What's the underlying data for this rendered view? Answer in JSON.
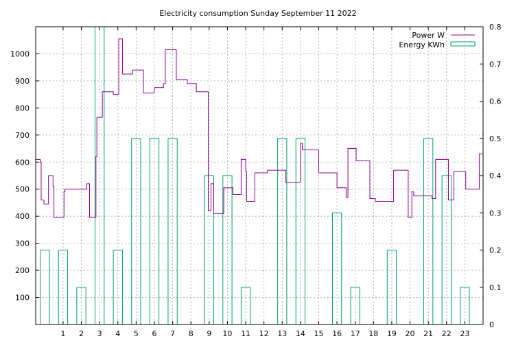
{
  "chart_data": {
    "type": "line",
    "title": "Electricity consumption Sunday September 11 2022",
    "xlabel": "",
    "ylabel": "",
    "y2label": "",
    "xlim": [
      -0.5,
      24.0
    ],
    "ylim": [
      0,
      1100
    ],
    "y2lim": [
      0,
      0.8
    ],
    "grid": true,
    "legend_position": "top-right",
    "x_ticks": [
      1,
      2,
      3,
      4,
      5,
      6,
      7,
      8,
      9,
      10,
      11,
      12,
      13,
      14,
      15,
      16,
      17,
      18,
      19,
      20,
      21,
      22,
      23
    ],
    "y_ticks": [
      100,
      200,
      300,
      400,
      500,
      600,
      700,
      800,
      900,
      1000
    ],
    "y2_ticks": [
      0,
      0.1,
      0.2,
      0.3,
      0.4,
      0.5,
      0.6,
      0.7,
      0.8
    ],
    "series": [
      {
        "name": "Power W",
        "axis": "y",
        "style": "steps",
        "color": "#8b008b",
        "points": [
          [
            -0.5,
            610
          ],
          [
            -0.25,
            600
          ],
          [
            -0.2,
            460
          ],
          [
            -0.05,
            445
          ],
          [
            0.2,
            550
          ],
          [
            0.45,
            510
          ],
          [
            0.5,
            395
          ],
          [
            1.0,
            395
          ],
          [
            1.05,
            490
          ],
          [
            1.1,
            500
          ],
          [
            2.3,
            520
          ],
          [
            2.45,
            395
          ],
          [
            2.8,
            620
          ],
          [
            2.85,
            765
          ],
          [
            3.15,
            860
          ],
          [
            3.75,
            850
          ],
          [
            4.05,
            1055
          ],
          [
            4.25,
            925
          ],
          [
            4.8,
            940
          ],
          [
            5.4,
            855
          ],
          [
            6.0,
            875
          ],
          [
            6.5,
            890
          ],
          [
            6.6,
            1015
          ],
          [
            7.2,
            905
          ],
          [
            7.8,
            890
          ],
          [
            8.3,
            860
          ],
          [
            8.95,
            420
          ],
          [
            9.1,
            520
          ],
          [
            9.25,
            410
          ],
          [
            9.8,
            505
          ],
          [
            10.3,
            480
          ],
          [
            10.75,
            610
          ],
          [
            11.0,
            565
          ],
          [
            11.05,
            455
          ],
          [
            11.5,
            560
          ],
          [
            12.2,
            570
          ],
          [
            13.2,
            525
          ],
          [
            14.0,
            670
          ],
          [
            14.1,
            645
          ],
          [
            15.0,
            560
          ],
          [
            16.0,
            505
          ],
          [
            16.5,
            470
          ],
          [
            16.6,
            650
          ],
          [
            17.05,
            605
          ],
          [
            17.8,
            465
          ],
          [
            18.1,
            455
          ],
          [
            19.1,
            570
          ],
          [
            19.9,
            395
          ],
          [
            20.1,
            490
          ],
          [
            20.2,
            475
          ],
          [
            21.2,
            465
          ],
          [
            21.4,
            610
          ],
          [
            22.1,
            460
          ],
          [
            22.4,
            565
          ],
          [
            23.05,
            500
          ],
          [
            23.8,
            630
          ],
          [
            24.0,
            585
          ]
        ]
      },
      {
        "name": "Energy KWh",
        "axis": "y2",
        "style": "boxes",
        "color": "#009e73",
        "bars": [
          [
            0,
            0.2
          ],
          [
            1,
            0.2
          ],
          [
            2,
            0.1
          ],
          [
            3,
            0.8
          ],
          [
            4,
            0.2
          ],
          [
            5,
            0.5
          ],
          [
            6,
            0.5
          ],
          [
            7,
            0.5
          ],
          [
            8,
            0.0
          ],
          [
            9,
            0.4
          ],
          [
            10,
            0.4
          ],
          [
            11,
            0.1
          ],
          [
            12,
            0.0
          ],
          [
            13,
            0.5
          ],
          [
            14,
            0.5
          ],
          [
            15,
            0.0
          ],
          [
            16,
            0.3
          ],
          [
            17,
            0.1
          ],
          [
            18,
            0.0
          ],
          [
            19,
            0.2
          ],
          [
            20,
            0.0
          ],
          [
            21,
            0.5
          ],
          [
            22,
            0.4
          ],
          [
            23,
            0.1
          ]
        ]
      }
    ]
  }
}
